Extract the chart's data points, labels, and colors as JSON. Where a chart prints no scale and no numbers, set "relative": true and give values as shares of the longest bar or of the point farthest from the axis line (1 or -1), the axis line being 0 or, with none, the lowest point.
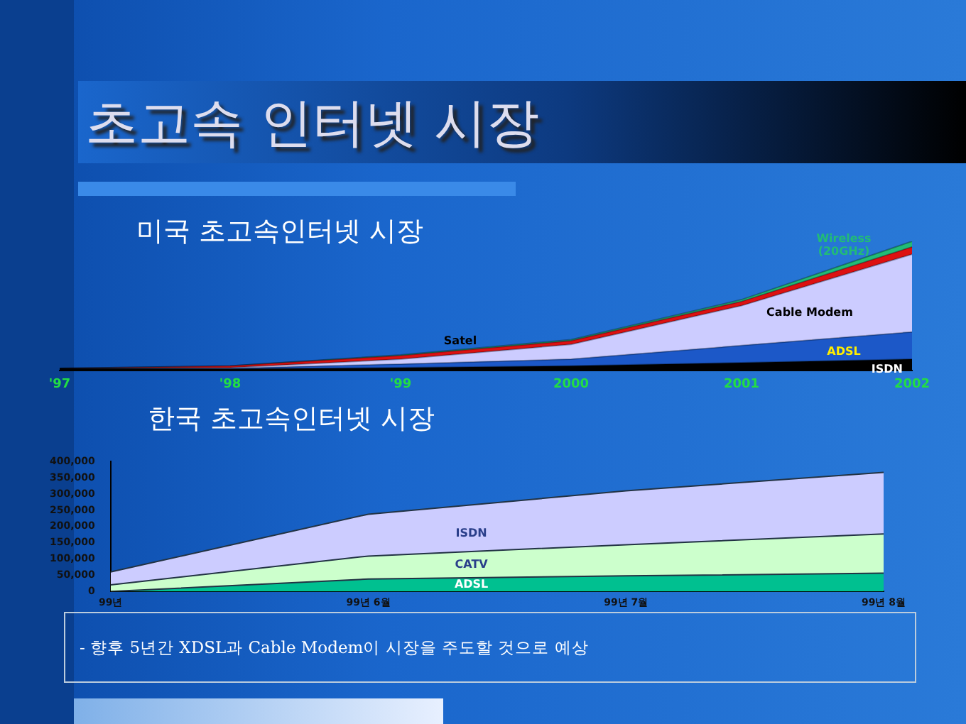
{
  "chart_data": [
    {
      "type": "area",
      "title": "초고속 인터넷 시장",
      "subtitle": "미국 초고속인터넷 시장",
      "stacked": true,
      "relative": true,
      "legend": false,
      "grid": false,
      "categories": [
        "'97",
        "'98",
        "'99",
        "2000",
        "2001",
        "2002"
      ],
      "series": [
        {
          "name": "ISDN",
          "color": "#000000",
          "values": [
            0.019,
            0.014,
            0.024,
            0.038,
            0.062,
            0.09
          ]
        },
        {
          "name": "ADSL",
          "color": "#1c58c8",
          "values": [
            0,
            0.005,
            0.028,
            0.052,
            0.133,
            0.21
          ]
        },
        {
          "name": "Cable Modem",
          "color": "#ccccff",
          "values": [
            0,
            0.005,
            0.038,
            0.114,
            0.308,
            0.6
          ]
        },
        {
          "name": "Satel",
          "color": "#dd1111",
          "values": [
            0,
            0.014,
            0.028,
            0.028,
            0.033,
            0.057
          ]
        },
        {
          "name": "Wireless\n(20GHz)",
          "color": "#22bb77",
          "values": [
            0,
            0,
            0.005,
            0.009,
            0.014,
            0.043
          ]
        }
      ]
    },
    {
      "type": "area",
      "title": "한국 초고속인터넷 시장",
      "stacked": true,
      "legend": false,
      "grid": false,
      "categories": [
        "99년",
        "99년 6월",
        "99년 7월",
        "99년 8월"
      ],
      "ylim": [
        0,
        400000
      ],
      "yticks": [
        {
          "value": 0,
          "label": "0"
        },
        {
          "value": 50000,
          "label": "50,000"
        },
        {
          "value": 100000,
          "label": "100,000"
        },
        {
          "value": 150000,
          "label": "150,000"
        },
        {
          "value": 200000,
          "label": "200,000"
        },
        {
          "value": 250000,
          "label": "250,000"
        },
        {
          "value": 300000,
          "label": "300,000"
        },
        {
          "value": 350000,
          "label": "350,000"
        },
        {
          "value": 400000,
          "label": "400,000"
        }
      ],
      "series": [
        {
          "name": "ADSL",
          "color": "#00c090",
          "values": [
            0,
            38000,
            48000,
            56000
          ]
        },
        {
          "name": "CATV",
          "color": "#ccffcc",
          "values": [
            20000,
            71000,
            96000,
            121000
          ]
        },
        {
          "name": "ISDN",
          "color": "#ccccff",
          "values": [
            40000,
            129000,
            166000,
            190000
          ]
        }
      ],
      "annotations": [
        "- 향후 5년간 XDSL과 Cable Modem이 시장을 주도할 것으로 예상"
      ]
    }
  ]
}
